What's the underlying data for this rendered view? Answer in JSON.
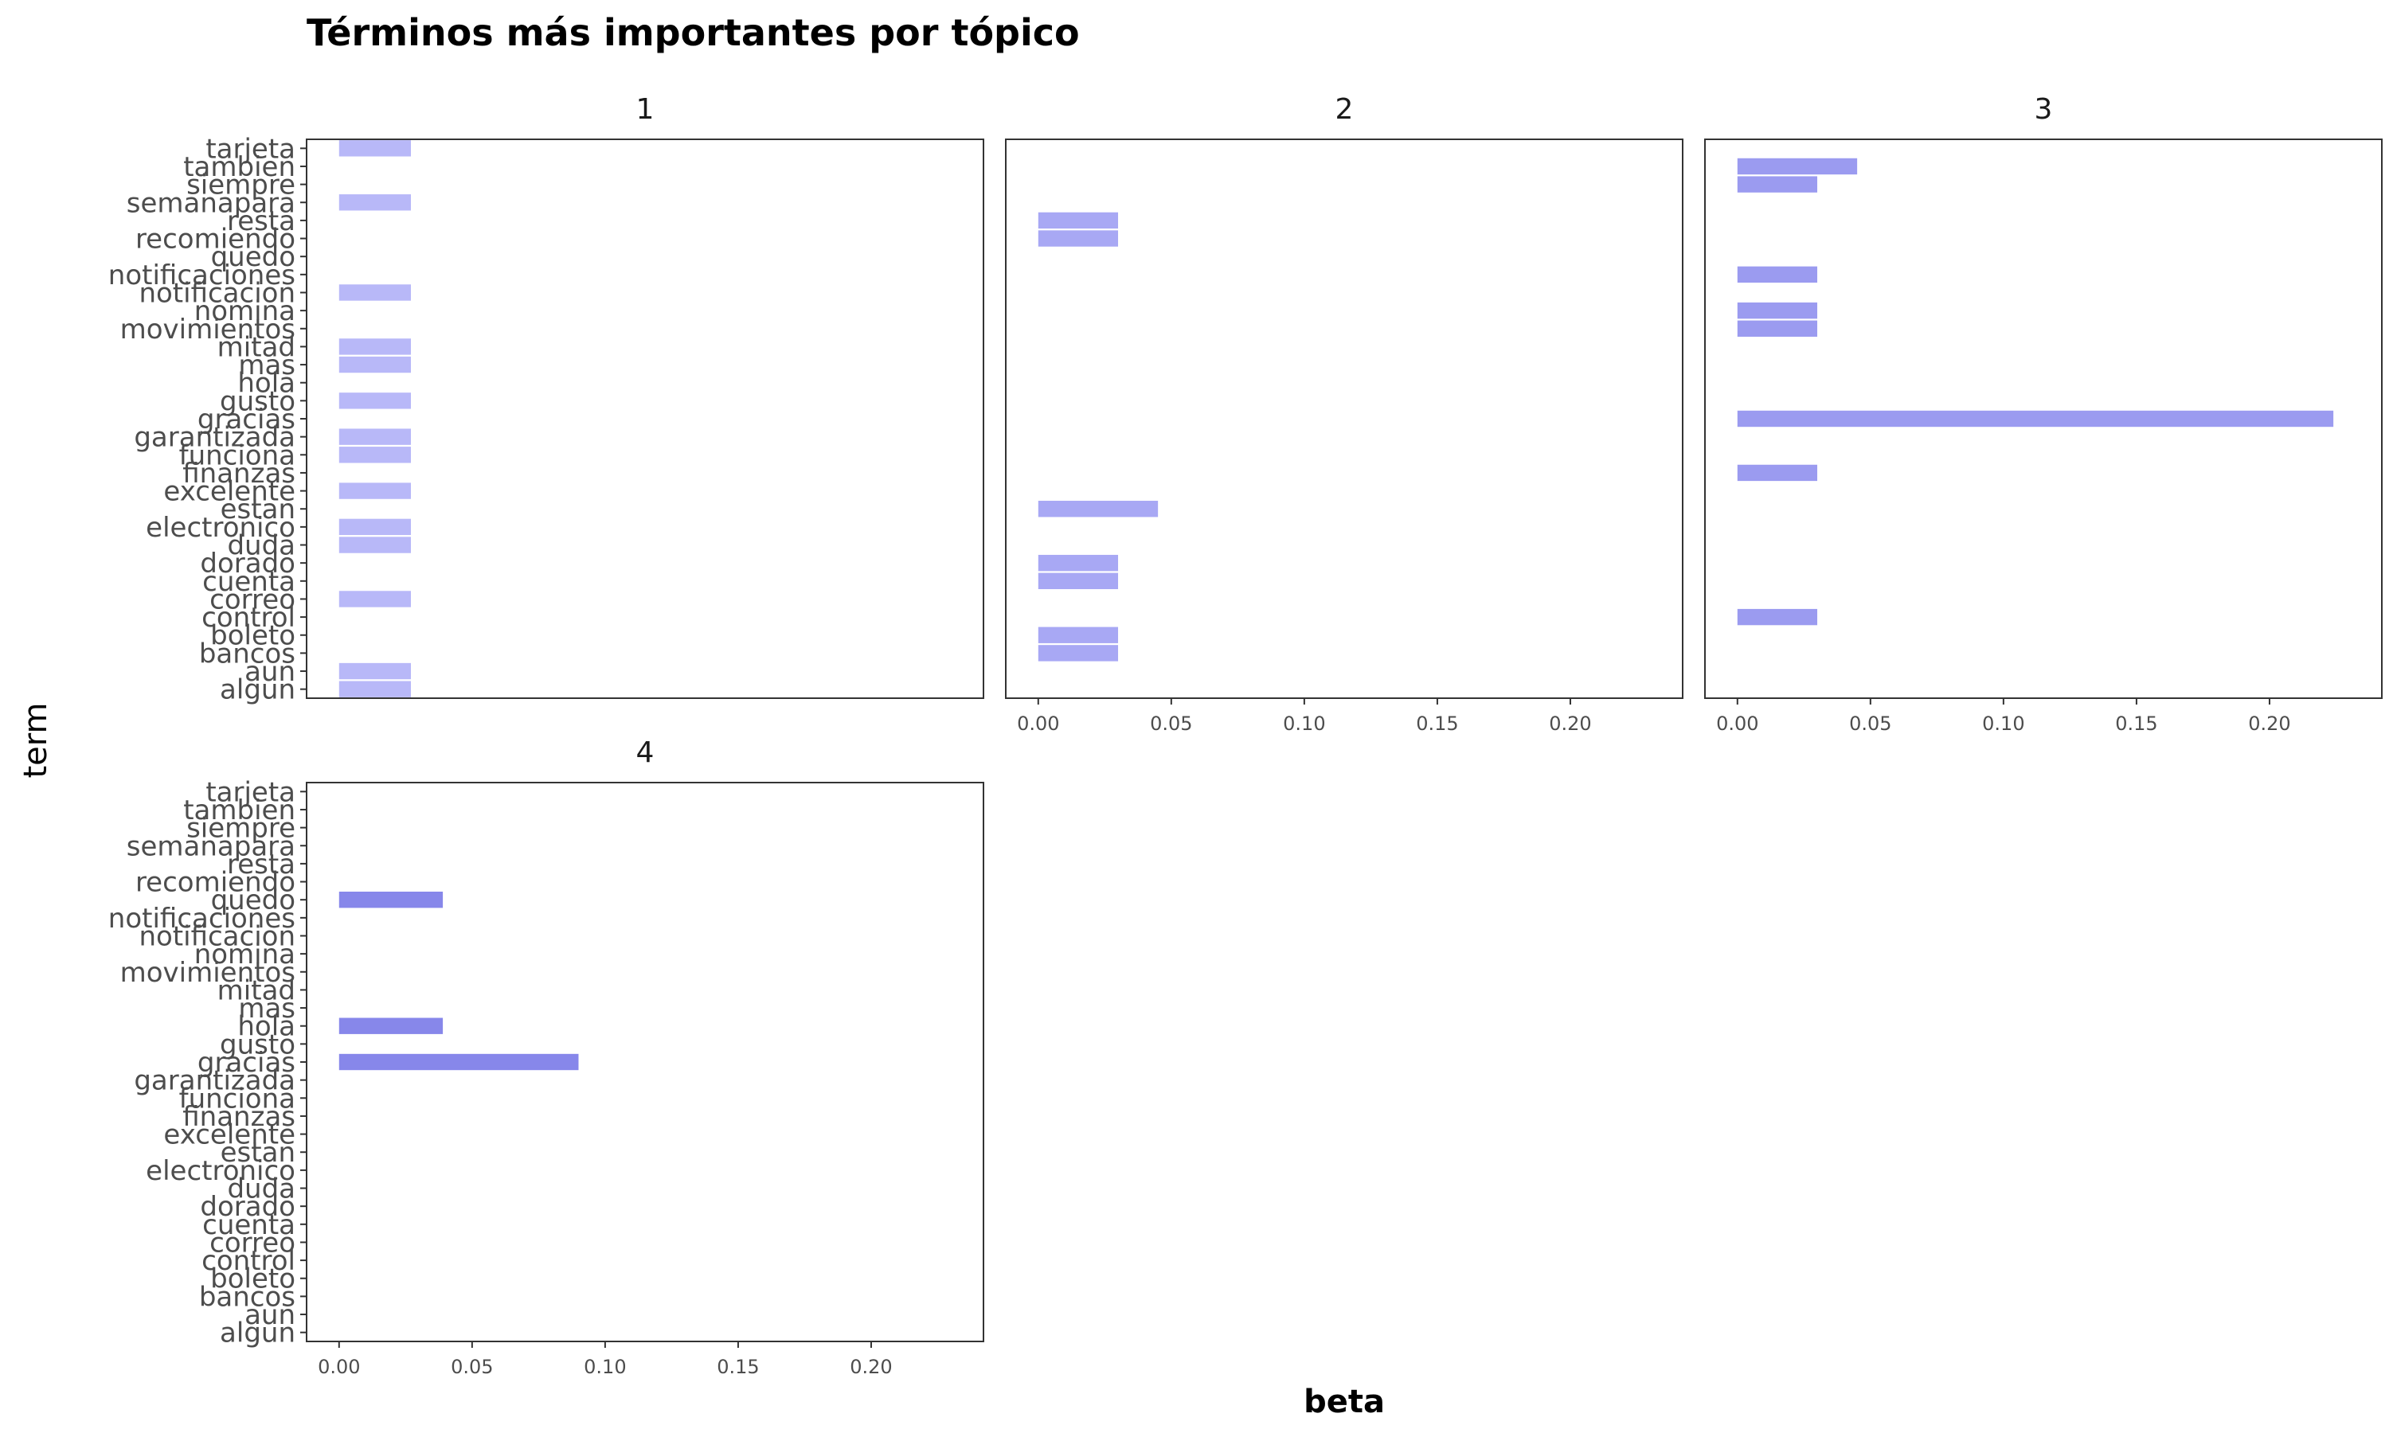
{
  "chart_data": {
    "type": "bar",
    "orientation": "horizontal",
    "title": "Términos más importantes por tópico",
    "xlabel": "beta",
    "ylabel": "term",
    "xlim": [
      0,
      0.23
    ],
    "xticks": [
      0.0,
      0.05,
      0.1,
      0.15,
      0.2
    ],
    "xtick_labels": [
      "0.00",
      "0.05",
      "0.10",
      "0.15",
      "0.20"
    ],
    "grid": false,
    "categories": [
      "algun",
      "aun",
      "bancos",
      "boleto",
      "control",
      "correo",
      "cuenta",
      "dorado",
      "duda",
      "electronico",
      "estan",
      "excelente",
      "finanzas",
      "funciona",
      "garantizada",
      "gracias",
      "gusto",
      "hola",
      "mas",
      "mitad",
      "movimientos",
      "nomina",
      "notificacion",
      "notificaciones",
      "quedo",
      "recomiendo",
      "resta",
      "semanapara",
      "siempre",
      "tambien",
      "tarjeta"
    ],
    "series": [
      {
        "name": "1",
        "color": "#b8b8f8",
        "values": {
          "algun": 0.027,
          "aun": 0.027,
          "duda": 0.027,
          "electronico": 0.027,
          "excelente": 0.027,
          "funciona": 0.027,
          "garantizada": 0.027,
          "gusto": 0.027,
          "mas": 0.027,
          "mitad": 0.027,
          "notificacion": 0.027,
          "semanapara": 0.027,
          "tarjeta": 0.027,
          "correo": 0.027
        }
      },
      {
        "name": "2",
        "color": "#a8a8f4",
        "values": {
          "bancos": 0.03,
          "boleto": 0.03,
          "cuenta": 0.03,
          "dorado": 0.03,
          "estan": 0.045,
          "recomiendo": 0.03,
          "resta": 0.03
        }
      },
      {
        "name": "3",
        "color": "#9b9bf0",
        "values": {
          "control": 0.03,
          "finanzas": 0.03,
          "gracias": 0.224,
          "movimientos": 0.03,
          "nomina": 0.03,
          "notificaciones": 0.03,
          "siempre": 0.03,
          "tambien": 0.045
        }
      },
      {
        "name": "4",
        "color": "#8787ea",
        "values": {
          "gracias": 0.09,
          "hola": 0.039,
          "quedo": 0.039
        }
      }
    ]
  }
}
